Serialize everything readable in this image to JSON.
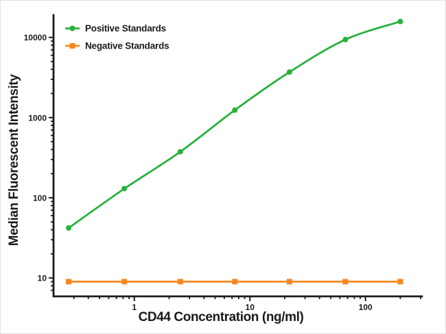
{
  "figure": {
    "background": "#ffffff",
    "border_color": "#e2e2e2",
    "axis_color": "#1a1a1a",
    "text_color": "#1a1a1a"
  },
  "legend": {
    "position": "top-left",
    "items": [
      {
        "label": "Positive Standards",
        "color": "#27b13a",
        "marker": "circle"
      },
      {
        "label": "Negative Standards",
        "color": "#f5871e",
        "marker": "square"
      }
    ]
  },
  "chart_data": {
    "type": "line",
    "title": "",
    "xlabel": "CD44 Concentration (ng/ml)",
    "ylabel": "Median Fluorescent Intensity",
    "x_scale": "log",
    "y_scale": "log",
    "xlim": [
      0.2,
      308
    ],
    "ylim": [
      5.9,
      19000
    ],
    "x_major_ticks": [
      1,
      10,
      100
    ],
    "y_major_ticks": [
      10,
      100,
      1000,
      10000
    ],
    "grid": false,
    "legend_position": "top-left",
    "x": [
      0.27,
      0.82,
      2.5,
      7.4,
      22,
      67,
      200
    ],
    "series": [
      {
        "name": "Positive Standards",
        "color": "#27b13a",
        "marker": "circle",
        "smooth": true,
        "values": [
          42,
          130,
          375,
          1240,
          3700,
          9400,
          15800
        ]
      },
      {
        "name": "Negative Standards",
        "color": "#f5871e",
        "marker": "square",
        "smooth": false,
        "values": [
          9,
          9,
          9,
          9,
          9,
          9,
          9
        ]
      }
    ]
  }
}
